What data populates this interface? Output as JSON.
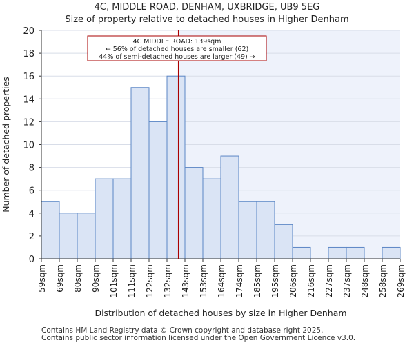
{
  "chart_data": {
    "type": "bar",
    "title": "4C, MIDDLE ROAD, DENHAM, UXBRIDGE, UB9 5EG",
    "subtitle": "Size of property relative to detached houses in Higher Denham",
    "xlabel": "Distribution of detached houses by size in Higher Denham",
    "ylabel": "Number of detached properties",
    "ylim": [
      0,
      20
    ],
    "yticks": [
      0,
      2,
      4,
      6,
      8,
      10,
      12,
      14,
      16,
      18,
      20
    ],
    "bin_edges": [
      59,
      69,
      80,
      90,
      101,
      111,
      122,
      132,
      143,
      153,
      164,
      174,
      185,
      195,
      206,
      216,
      227,
      237,
      248,
      258,
      269
    ],
    "tick_labels": [
      "59sqm",
      "69sqm",
      "80sqm",
      "90sqm",
      "101sqm",
      "111sqm",
      "122sqm",
      "132sqm",
      "143sqm",
      "153sqm",
      "164sqm",
      "174sqm",
      "185sqm",
      "195sqm",
      "206sqm",
      "216sqm",
      "227sqm",
      "237sqm",
      "248sqm",
      "258sqm",
      "269sqm"
    ],
    "values": [
      5,
      4,
      4,
      7,
      7,
      15,
      12,
      16,
      8,
      7,
      9,
      5,
      5,
      3,
      1,
      0,
      1,
      1,
      0,
      1
    ],
    "marker_value": 139,
    "annotation": {
      "line1": "4C MIDDLE ROAD: 139sqm",
      "line2": "← 56% of detached houses are smaller (62)",
      "line3": "44% of semi-detached houses are larger (49) →"
    },
    "colors": {
      "bar_fill": "#dae4f5",
      "bar_stroke": "#5b86c5",
      "right_shade": "#eef2fb",
      "marker": "#aa0000",
      "grid": "#d8dde8"
    }
  },
  "footer": {
    "line1": "Contains HM Land Registry data © Crown copyright and database right 2025.",
    "line2": "Contains public sector information licensed under the Open Government Licence v3.0."
  }
}
